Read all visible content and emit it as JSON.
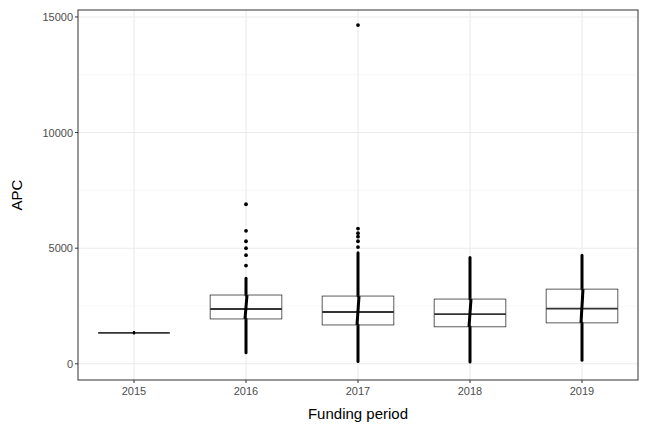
{
  "chart_data": {
    "type": "box",
    "x_label": "Funding period",
    "y_label": "APC",
    "categories": [
      "2015",
      "2016",
      "2017",
      "2018",
      "2019"
    ],
    "boxes": [
      {
        "whisker_low": 1340,
        "q1": 1340,
        "median": 1340,
        "q3": 1340,
        "whisker_high": 1340,
        "outliers": []
      },
      {
        "whisker_low": 480,
        "q1": 1940,
        "median": 2370,
        "q3": 2975,
        "whisker_high": 3700,
        "outliers": [
          4250,
          4700,
          5000,
          5300,
          5750,
          6900
        ]
      },
      {
        "whisker_low": 100,
        "q1": 1680,
        "median": 2240,
        "q3": 2930,
        "whisker_high": 4800,
        "outliers": [
          5050,
          5300,
          5500,
          5650,
          5850,
          14650
        ]
      },
      {
        "whisker_low": 80,
        "q1": 1600,
        "median": 2150,
        "q3": 2800,
        "whisker_high": 4600,
        "outliers": []
      },
      {
        "whisker_low": 150,
        "q1": 1770,
        "median": 2390,
        "q3": 3230,
        "whisker_high": 4700,
        "outliers": []
      }
    ],
    "color": "#000000",
    "ylim": [
      -700,
      15300
    ],
    "yticks": [
      0,
      5000,
      10000,
      15000
    ],
    "grid": true
  }
}
